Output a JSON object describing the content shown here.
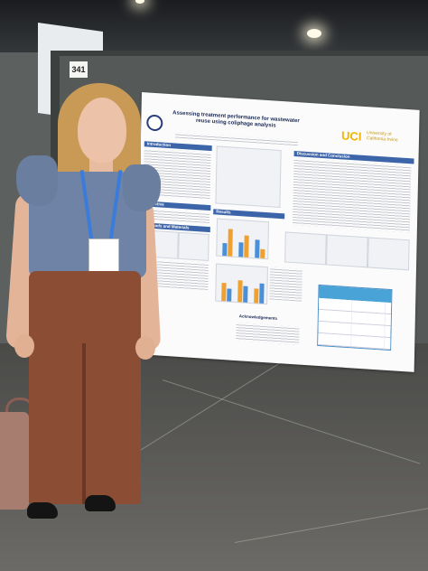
{
  "scene": {
    "booth_number": "341"
  },
  "poster": {
    "title": "Assessing treatment performance for wastewater reuse using coliphage analysis",
    "logo": "UCI",
    "logo_subtitle": "University of California Irvine",
    "sections": {
      "introduction": "Introduction",
      "objective": "Objective",
      "methods": "Methods and Materials",
      "results": "Results",
      "discussion": "Discussion and Conclusion",
      "acknowledgements": "Acknowledgements"
    }
  },
  "colors": {
    "poster_header": "#3c64a8",
    "uci_gold": "#f2b400",
    "pants": "#8b4d34",
    "top": "#6f83a6",
    "lanyard": "#3b7bd9"
  }
}
